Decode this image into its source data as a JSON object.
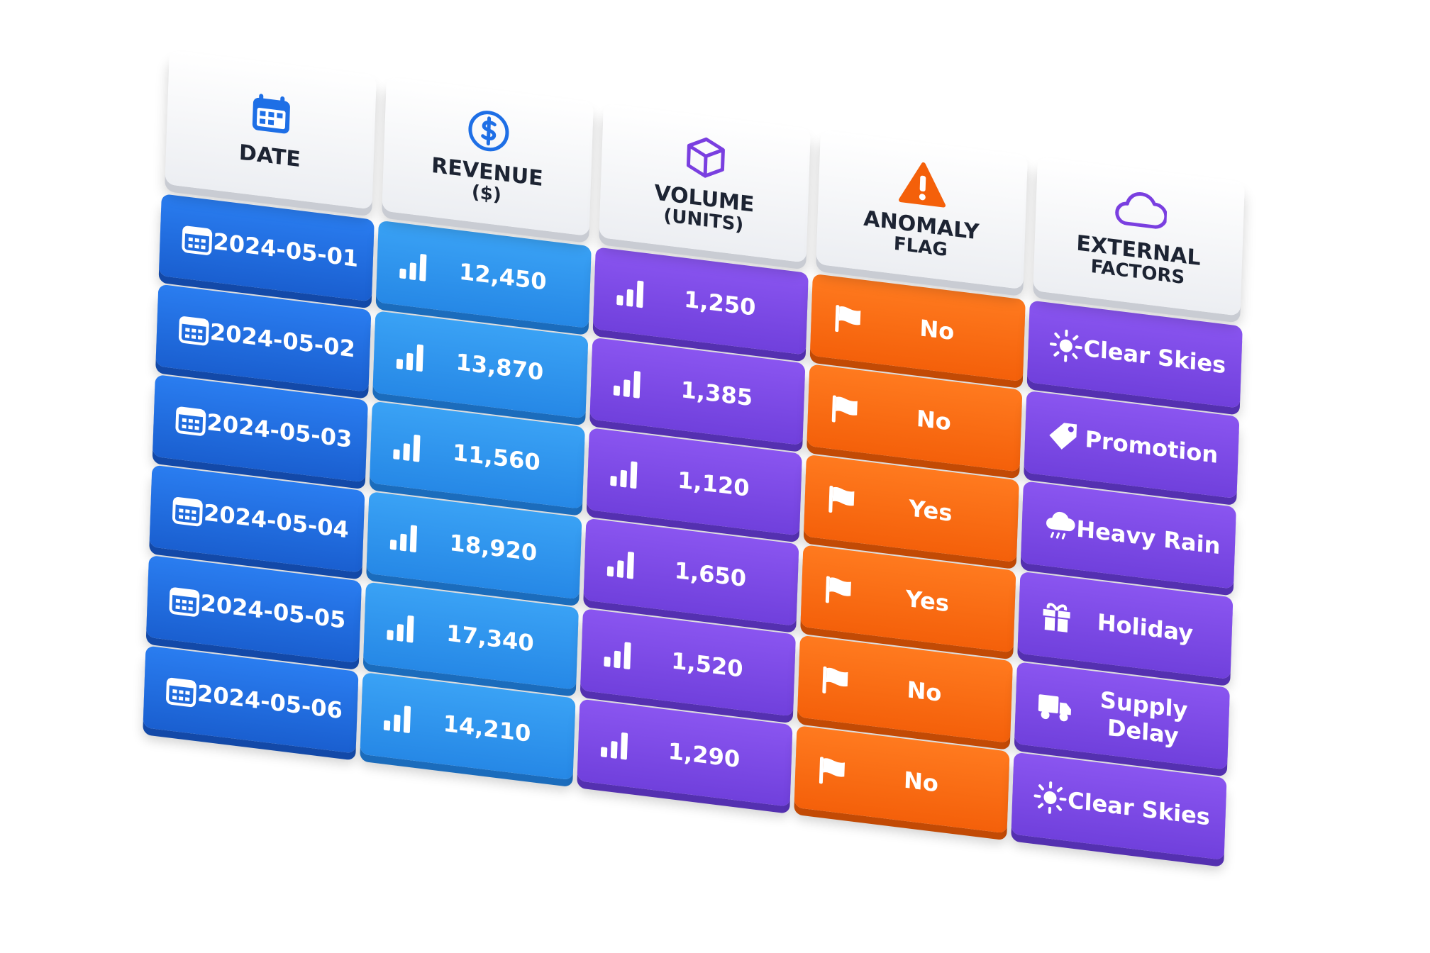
{
  "table": {
    "columns": [
      {
        "title": "DATE"
      },
      {
        "title": "REVENUE",
        "unit": "($)"
      },
      {
        "title": "VOLUME",
        "unit": "(UNITS)"
      },
      {
        "title": "ANOMALY",
        "unit": "FLAG"
      },
      {
        "title": "EXTERNAL",
        "unit": "FACTORS"
      }
    ],
    "rows": [
      [
        "2024-05-01",
        "12,450",
        "1,250",
        "No",
        "Clear Skies"
      ],
      [
        "2024-05-02",
        "13,870",
        "1,385",
        "No",
        "Promotion"
      ],
      [
        "2024-05-03",
        "11,560",
        "1,120",
        "Yes",
        "Heavy Rain"
      ],
      [
        "2024-05-04",
        "18,920",
        "1,650",
        "Yes",
        "Holiday"
      ],
      [
        "2024-05-05",
        "17,340",
        "1,520",
        "No",
        "Supply Delay"
      ],
      [
        "2024-05-06",
        "14,210",
        "1,290",
        "No",
        "Clear Skies"
      ]
    ]
  }
}
